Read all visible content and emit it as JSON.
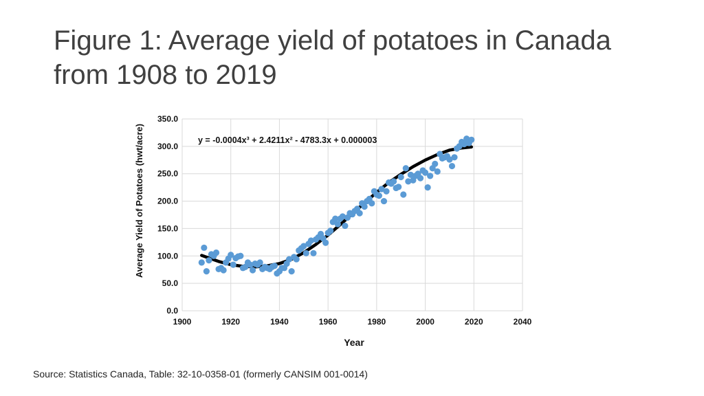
{
  "slide": {
    "title_line1": "Figure 1: Average yield of potatoes in Canada",
    "title_line2": "from 1908 to 2019",
    "source": "Source: Statistics Canada, Table: 32-10-0358-01 (formerly CANSIM 001-0014)"
  },
  "chart_data": {
    "type": "scatter",
    "xlabel": "Year",
    "ylabel": "Average Yield of Potatoes (hwt/acre)",
    "xlim": [
      1900,
      2040
    ],
    "ylim": [
      0,
      350
    ],
    "x_ticks": [
      "1900",
      "1920",
      "1940",
      "1960",
      "1980",
      "2000",
      "2020",
      "2040"
    ],
    "y_ticks": [
      "0.0",
      "50.0",
      "100.0",
      "150.0",
      "200.0",
      "250.0",
      "300.0",
      "350.0"
    ],
    "grid": true,
    "legend": "none",
    "colors": {
      "points": "#5b9bd5",
      "trendline": "#000000"
    },
    "trendline": {
      "equation": "y = -0.0004x³ + 2.4211x² - 4783.3x + 0.000003",
      "x_range": [
        1908,
        2019
      ],
      "points": [
        {
          "x": 1908,
          "y": 101
        },
        {
          "x": 1915,
          "y": 90
        },
        {
          "x": 1920,
          "y": 84
        },
        {
          "x": 1925,
          "y": 81
        },
        {
          "x": 1930,
          "y": 80
        },
        {
          "x": 1935,
          "y": 82
        },
        {
          "x": 1940,
          "y": 86
        },
        {
          "x": 1945,
          "y": 94
        },
        {
          "x": 1950,
          "y": 106
        },
        {
          "x": 1955,
          "y": 121
        },
        {
          "x": 1960,
          "y": 138
        },
        {
          "x": 1965,
          "y": 157
        },
        {
          "x": 1970,
          "y": 177
        },
        {
          "x": 1975,
          "y": 197
        },
        {
          "x": 1980,
          "y": 216
        },
        {
          "x": 1985,
          "y": 234
        },
        {
          "x": 1990,
          "y": 249
        },
        {
          "x": 1995,
          "y": 263
        },
        {
          "x": 2000,
          "y": 275
        },
        {
          "x": 2005,
          "y": 285
        },
        {
          "x": 2010,
          "y": 293
        },
        {
          "x": 2015,
          "y": 297
        },
        {
          "x": 2019,
          "y": 299
        }
      ]
    },
    "series": [
      {
        "points": [
          {
            "x": 1908,
            "y": 88
          },
          {
            "x": 1909,
            "y": 115
          },
          {
            "x": 1910,
            "y": 72
          },
          {
            "x": 1911,
            "y": 92
          },
          {
            "x": 1912,
            "y": 103
          },
          {
            "x": 1913,
            "y": 100
          },
          {
            "x": 1914,
            "y": 106
          },
          {
            "x": 1915,
            "y": 76
          },
          {
            "x": 1916,
            "y": 78
          },
          {
            "x": 1917,
            "y": 74
          },
          {
            "x": 1918,
            "y": 88
          },
          {
            "x": 1919,
            "y": 95
          },
          {
            "x": 1920,
            "y": 102
          },
          {
            "x": 1921,
            "y": 84
          },
          {
            "x": 1922,
            "y": 96
          },
          {
            "x": 1923,
            "y": 99
          },
          {
            "x": 1924,
            "y": 100
          },
          {
            "x": 1925,
            "y": 78
          },
          {
            "x": 1926,
            "y": 80
          },
          {
            "x": 1927,
            "y": 88
          },
          {
            "x": 1928,
            "y": 84
          },
          {
            "x": 1929,
            "y": 74
          },
          {
            "x": 1930,
            "y": 86
          },
          {
            "x": 1931,
            "y": 84
          },
          {
            "x": 1932,
            "y": 88
          },
          {
            "x": 1933,
            "y": 76
          },
          {
            "x": 1934,
            "y": 80
          },
          {
            "x": 1935,
            "y": 78
          },
          {
            "x": 1936,
            "y": 76
          },
          {
            "x": 1937,
            "y": 80
          },
          {
            "x": 1938,
            "y": 82
          },
          {
            "x": 1939,
            "y": 68
          },
          {
            "x": 1940,
            "y": 72
          },
          {
            "x": 1941,
            "y": 78
          },
          {
            "x": 1942,
            "y": 78
          },
          {
            "x": 1943,
            "y": 86
          },
          {
            "x": 1944,
            "y": 94
          },
          {
            "x": 1945,
            "y": 72
          },
          {
            "x": 1946,
            "y": 98
          },
          {
            "x": 1947,
            "y": 94
          },
          {
            "x": 1948,
            "y": 110
          },
          {
            "x": 1949,
            "y": 114
          },
          {
            "x": 1950,
            "y": 118
          },
          {
            "x": 1951,
            "y": 105
          },
          {
            "x": 1952,
            "y": 122
          },
          {
            "x": 1953,
            "y": 128
          },
          {
            "x": 1954,
            "y": 105
          },
          {
            "x": 1955,
            "y": 130
          },
          {
            "x": 1956,
            "y": 134
          },
          {
            "x": 1957,
            "y": 140
          },
          {
            "x": 1958,
            "y": 132
          },
          {
            "x": 1959,
            "y": 124
          },
          {
            "x": 1960,
            "y": 142
          },
          {
            "x": 1961,
            "y": 146
          },
          {
            "x": 1962,
            "y": 162
          },
          {
            "x": 1963,
            "y": 168
          },
          {
            "x": 1964,
            "y": 158
          },
          {
            "x": 1965,
            "y": 168
          },
          {
            "x": 1966,
            "y": 172
          },
          {
            "x": 1967,
            "y": 155
          },
          {
            "x": 1968,
            "y": 170
          },
          {
            "x": 1969,
            "y": 178
          },
          {
            "x": 1970,
            "y": 176
          },
          {
            "x": 1971,
            "y": 182
          },
          {
            "x": 1972,
            "y": 186
          },
          {
            "x": 1973,
            "y": 178
          },
          {
            "x": 1974,
            "y": 196
          },
          {
            "x": 1975,
            "y": 190
          },
          {
            "x": 1976,
            "y": 200
          },
          {
            "x": 1977,
            "y": 204
          },
          {
            "x": 1978,
            "y": 196
          },
          {
            "x": 1979,
            "y": 218
          },
          {
            "x": 1980,
            "y": 212
          },
          {
            "x": 1981,
            "y": 210
          },
          {
            "x": 1982,
            "y": 222
          },
          {
            "x": 1983,
            "y": 200
          },
          {
            "x": 1984,
            "y": 218
          },
          {
            "x": 1985,
            "y": 234
          },
          {
            "x": 1986,
            "y": 232
          },
          {
            "x": 1987,
            "y": 236
          },
          {
            "x": 1988,
            "y": 224
          },
          {
            "x": 1989,
            "y": 226
          },
          {
            "x": 1990,
            "y": 244
          },
          {
            "x": 1991,
            "y": 212
          },
          {
            "x": 1992,
            "y": 260
          },
          {
            "x": 1993,
            "y": 236
          },
          {
            "x": 1994,
            "y": 248
          },
          {
            "x": 1995,
            "y": 238
          },
          {
            "x": 1996,
            "y": 246
          },
          {
            "x": 1997,
            "y": 250
          },
          {
            "x": 1998,
            "y": 242
          },
          {
            "x": 1999,
            "y": 256
          },
          {
            "x": 2000,
            "y": 252
          },
          {
            "x": 2001,
            "y": 225
          },
          {
            "x": 2002,
            "y": 246
          },
          {
            "x": 2003,
            "y": 260
          },
          {
            "x": 2004,
            "y": 268
          },
          {
            "x": 2005,
            "y": 254
          },
          {
            "x": 2006,
            "y": 286
          },
          {
            "x": 2007,
            "y": 278
          },
          {
            "x": 2008,
            "y": 280
          },
          {
            "x": 2009,
            "y": 282
          },
          {
            "x": 2010,
            "y": 276
          },
          {
            "x": 2011,
            "y": 264
          },
          {
            "x": 2012,
            "y": 280
          },
          {
            "x": 2013,
            "y": 296
          },
          {
            "x": 2014,
            "y": 300
          },
          {
            "x": 2015,
            "y": 308
          },
          {
            "x": 2016,
            "y": 304
          },
          {
            "x": 2017,
            "y": 314
          },
          {
            "x": 2018,
            "y": 306
          },
          {
            "x": 2019,
            "y": 312
          }
        ]
      }
    ]
  }
}
